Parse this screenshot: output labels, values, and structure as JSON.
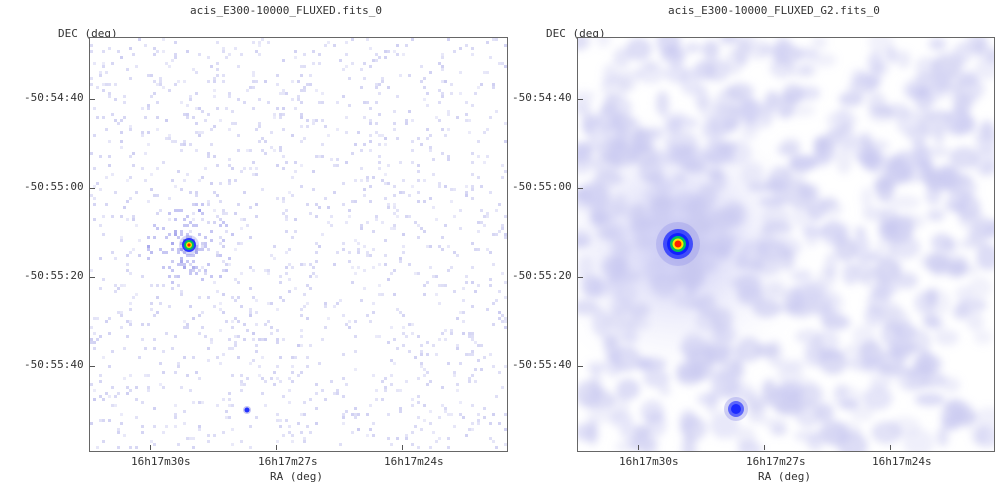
{
  "panels": [
    {
      "title": "acis_E300-10000_FLUXED.fits_0",
      "dec_label": "DEC (deg)",
      "ra_label": "RA (deg)",
      "y_ticks": [
        "-50:54:40",
        "-50:55:00",
        "-50:55:20",
        "-50:55:40"
      ],
      "x_ticks": [
        "16h17m30s",
        "16h17m27s",
        "16h17m24s"
      ],
      "smoothing": "none"
    },
    {
      "title": "acis_E300-10000_FLUXED_G2.fits_0",
      "dec_label": "DEC (deg)",
      "ra_label": "RA (deg)",
      "y_ticks": [
        "-50:54:40",
        "-50:55:00",
        "-50:55:20",
        "-50:55:40"
      ],
      "x_ticks": [
        "16h17m30s",
        "16h17m27s",
        "16h17m24s"
      ],
      "smoothing": "gaussian"
    }
  ],
  "colors": {
    "noise": "#c8c8f0",
    "core_red": "#ff2000",
    "ring_yellow": "#ffe600",
    "ring_green": "#00c060",
    "ring_blue": "#1020ff",
    "halo": "#9090e8"
  }
}
